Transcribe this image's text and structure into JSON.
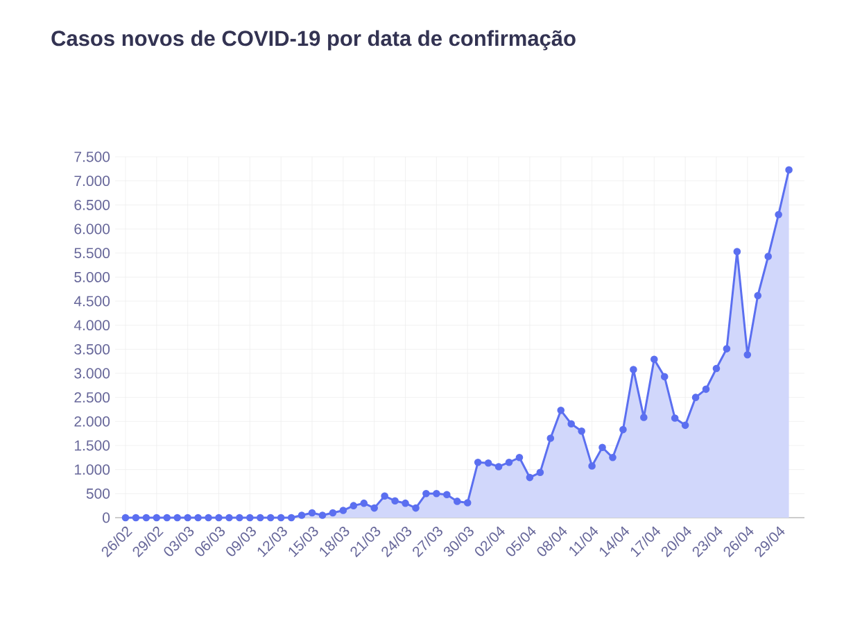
{
  "chart_data": {
    "type": "area",
    "title": "Casos novos de COVID-19 por data de confirmação",
    "categories": [
      "26/02",
      null,
      null,
      "29/02",
      null,
      null,
      "03/03",
      null,
      null,
      "06/03",
      null,
      null,
      "09/03",
      null,
      null,
      "12/03",
      null,
      null,
      "15/03",
      null,
      null,
      "18/03",
      null,
      null,
      "21/03",
      null,
      null,
      "24/03",
      null,
      null,
      "27/03",
      null,
      null,
      "30/03",
      null,
      null,
      "02/04",
      null,
      null,
      "05/04",
      null,
      null,
      "08/04",
      null,
      null,
      "11/04",
      null,
      null,
      "14/04",
      null,
      null,
      "17/04",
      null,
      null,
      "20/04",
      null,
      null,
      "23/04",
      null,
      null,
      "26/04",
      null,
      null,
      "29/04",
      null
    ],
    "series": [
      {
        "color": "#5b6ff0",
        "values": [
          0,
          0,
          0,
          0,
          0,
          0,
          0,
          0,
          0,
          0,
          0,
          0,
          0,
          0,
          0,
          0,
          0,
          50,
          100,
          50,
          100,
          150,
          250,
          300,
          200,
          450,
          350,
          300,
          200,
          500,
          500,
          480,
          340,
          310,
          1150,
          1135,
          1060,
          1150,
          1250,
          835,
          940,
          1650,
          2230,
          1950,
          1800,
          1075,
          1460,
          1250,
          1830,
          3080,
          2085,
          3290,
          2930,
          2070,
          1920,
          2500,
          2670,
          3100,
          3510,
          5530,
          3385,
          4615,
          5430,
          6300,
          7230
        ]
      }
    ],
    "ylim": [
      0,
      7500
    ],
    "yticks": [
      0,
      500,
      {
        "value": 1000,
        "label": "1.000"
      },
      {
        "value": 1500,
        "label": "1.500"
      },
      {
        "value": 2000,
        "label": "2.000"
      },
      {
        "value": 2500,
        "label": "2.500"
      },
      {
        "value": 3000,
        "label": "3.000"
      },
      {
        "value": 3500,
        "label": "3.500"
      },
      {
        "value": 4000,
        "label": "4.000"
      },
      {
        "value": 4500,
        "label": "4.500"
      },
      {
        "value": 5000,
        "label": "5.000"
      },
      {
        "value": 5500,
        "label": "5.500"
      },
      {
        "value": 6000,
        "label": "6.000"
      },
      {
        "value": 6500,
        "label": "6.500"
      },
      {
        "value": 7000,
        "label": "7.000"
      },
      {
        "value": 7500,
        "label": "7.500"
      }
    ],
    "grid": true,
    "marker": "circle"
  }
}
